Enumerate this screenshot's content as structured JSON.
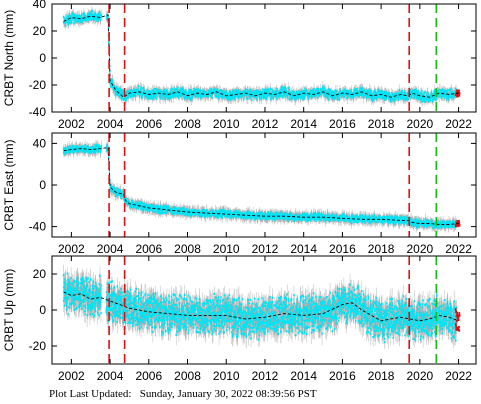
{
  "footer": {
    "label": "Plot Last Updated:",
    "timestamp": "Sunday, January 30, 2022 08:39:56 PST"
  },
  "colors": {
    "data_points": "#00e5f5",
    "error_bars": "#a8a8a8",
    "model_line": "#000000",
    "event_line": "#e01010",
    "event_line_alt": "#10c010",
    "recent_points": "#e01010"
  },
  "chart_data": [
    {
      "type": "scatter",
      "ylabel": "CRBT North (mm)",
      "xlim": [
        2001.0,
        2022.9
      ],
      "ylim": [
        -40,
        40
      ],
      "xticks": [
        2002,
        2004,
        2006,
        2008,
        2010,
        2012,
        2014,
        2016,
        2018,
        2020,
        2022
      ],
      "yticks": [
        -40,
        -20,
        0,
        20,
        40
      ],
      "grid": false,
      "event_lines": [
        {
          "x": 2003.95,
          "color": "red"
        },
        {
          "x": 2004.75,
          "color": "red"
        },
        {
          "x": 2019.45,
          "color": "red"
        },
        {
          "x": 2020.85,
          "color": "green"
        }
      ],
      "series": [
        {
          "x": [
            2001.6,
            2002.0,
            2002.5,
            2003.0,
            2003.5,
            2003.9,
            2004.0,
            2004.3,
            2004.7,
            2005.0,
            2005.5,
            2006.0,
            2006.5,
            2007.0,
            2007.5,
            2008.0,
            2008.5,
            2009.0,
            2009.5,
            2010.0,
            2010.5,
            2011.0,
            2011.5,
            2012.0,
            2012.5,
            2013.0,
            2013.5,
            2014.0,
            2014.5,
            2015.0,
            2015.5,
            2016.0,
            2016.5,
            2017.0,
            2017.5,
            2018.0,
            2018.5,
            2019.0,
            2019.4,
            2019.6,
            2020.0,
            2020.5,
            2021.0,
            2021.5,
            2022.0
          ],
          "y": [
            27,
            30,
            29,
            31,
            30,
            32,
            -17,
            -24,
            -29,
            -26,
            -25,
            -27,
            -26,
            -27,
            -25,
            -28,
            -26,
            -27,
            -25,
            -28,
            -27,
            -26,
            -28,
            -26,
            -27,
            -25,
            -28,
            -26,
            -27,
            -25,
            -28,
            -26,
            -27,
            -25,
            -28,
            -27,
            -29,
            -27,
            -28,
            -26,
            -28,
            -29,
            -26,
            -27,
            -26
          ]
        }
      ]
    },
    {
      "type": "scatter",
      "ylabel": "CRBT East (mm)",
      "xlim": [
        2001.0,
        2022.9
      ],
      "ylim": [
        -50,
        50
      ],
      "xticks": [
        2002,
        2004,
        2006,
        2008,
        2010,
        2012,
        2014,
        2016,
        2018,
        2020,
        2022
      ],
      "yticks": [
        -40,
        0,
        40
      ],
      "grid": false,
      "event_lines": [
        {
          "x": 2003.95,
          "color": "red"
        },
        {
          "x": 2004.75,
          "color": "red"
        },
        {
          "x": 2019.45,
          "color": "red"
        },
        {
          "x": 2020.85,
          "color": "green"
        }
      ],
      "series": [
        {
          "x": [
            2001.6,
            2002.0,
            2002.5,
            2003.0,
            2003.5,
            2003.9,
            2004.0,
            2004.3,
            2004.7,
            2004.8,
            2005.0,
            2005.5,
            2006.0,
            2006.5,
            2007.0,
            2007.5,
            2008.0,
            2009.0,
            2010.0,
            2011.0,
            2012.0,
            2013.0,
            2014.0,
            2015.0,
            2016.0,
            2017.0,
            2018.0,
            2019.0,
            2019.4,
            2019.6,
            2020.0,
            2020.5,
            2021.0,
            2021.5,
            2022.0
          ],
          "y": [
            33,
            34,
            35,
            34,
            35,
            36,
            -2,
            -7,
            -9,
            -15,
            -18,
            -20,
            -22,
            -23,
            -24,
            -25,
            -26,
            -27,
            -28,
            -29,
            -30,
            -30,
            -31,
            -31,
            -32,
            -33,
            -33,
            -34,
            -34,
            -36,
            -37,
            -37,
            -38,
            -38,
            -37
          ]
        }
      ]
    },
    {
      "type": "scatter",
      "ylabel": "CRBT Up (mm)",
      "xlim": [
        2001.0,
        2022.9
      ],
      "ylim": [
        -30,
        30
      ],
      "xticks": [
        2002,
        2004,
        2006,
        2008,
        2010,
        2012,
        2014,
        2016,
        2018,
        2020,
        2022
      ],
      "yticks": [
        -20,
        0,
        20
      ],
      "grid": false,
      "event_lines": [
        {
          "x": 2003.95,
          "color": "red"
        },
        {
          "x": 2004.75,
          "color": "red"
        },
        {
          "x": 2019.45,
          "color": "red"
        },
        {
          "x": 2020.85,
          "color": "green"
        }
      ],
      "series": [
        {
          "x": [
            2001.6,
            2002.0,
            2002.5,
            2003.0,
            2003.5,
            2004.0,
            2004.5,
            2005.0,
            2006.0,
            2007.0,
            2008.0,
            2009.0,
            2010.0,
            2011.0,
            2012.0,
            2013.0,
            2014.0,
            2015.0,
            2016.0,
            2016.5,
            2017.0,
            2018.0,
            2019.0,
            2020.0,
            2020.5,
            2021.0,
            2021.5,
            2022.0
          ],
          "y": [
            10,
            8,
            9,
            6,
            7,
            5,
            3,
            1,
            -1,
            -2,
            -3,
            -3,
            -3,
            -5,
            -4,
            -2,
            -3,
            -2,
            3,
            4,
            0,
            -6,
            -4,
            -6,
            -5,
            -3,
            -4,
            -6
          ]
        }
      ]
    }
  ]
}
